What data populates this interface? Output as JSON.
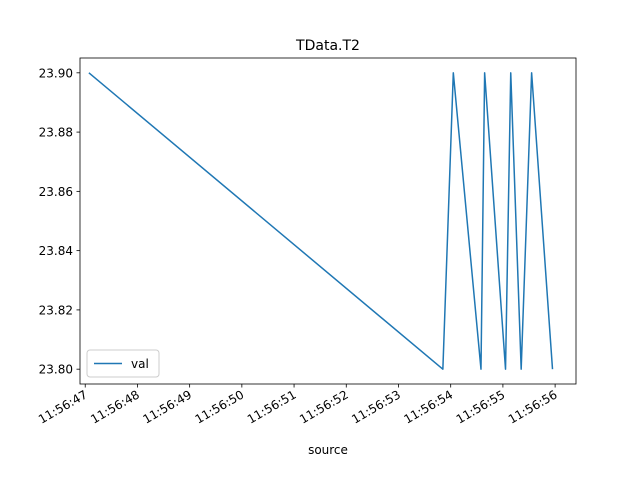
{
  "chart_data": {
    "type": "line",
    "title": "TData.T2",
    "xlabel": "source",
    "ylabel": "",
    "x_ticks": [
      "11:56:47",
      "11:56:48",
      "11:56:49",
      "11:56:50",
      "11:56:51",
      "11:56:52",
      "11:56:53",
      "11:56:54",
      "11:56:55",
      "11:56:56"
    ],
    "y_ticks": [
      "23.80",
      "23.82",
      "23.84",
      "23.86",
      "23.88",
      "23.90"
    ],
    "xlim": [
      "11:56:46.9",
      "11:56:56.4"
    ],
    "ylim": [
      23.795,
      23.905
    ],
    "legend_position": "lower-left",
    "series": [
      {
        "name": "val",
        "color": "#1f77b4",
        "x": [
          "11:56:47.07",
          "11:56:53.85",
          "11:56:54.05",
          "11:56:54.58",
          "11:56:54.65",
          "11:56:55.05",
          "11:56:55.15",
          "11:56:55.35",
          "11:56:55.55",
          "11:56:55.95"
        ],
        "y": [
          23.9,
          23.8,
          23.9,
          23.8,
          23.9,
          23.8,
          23.9,
          23.8,
          23.9,
          23.8
        ]
      }
    ]
  }
}
